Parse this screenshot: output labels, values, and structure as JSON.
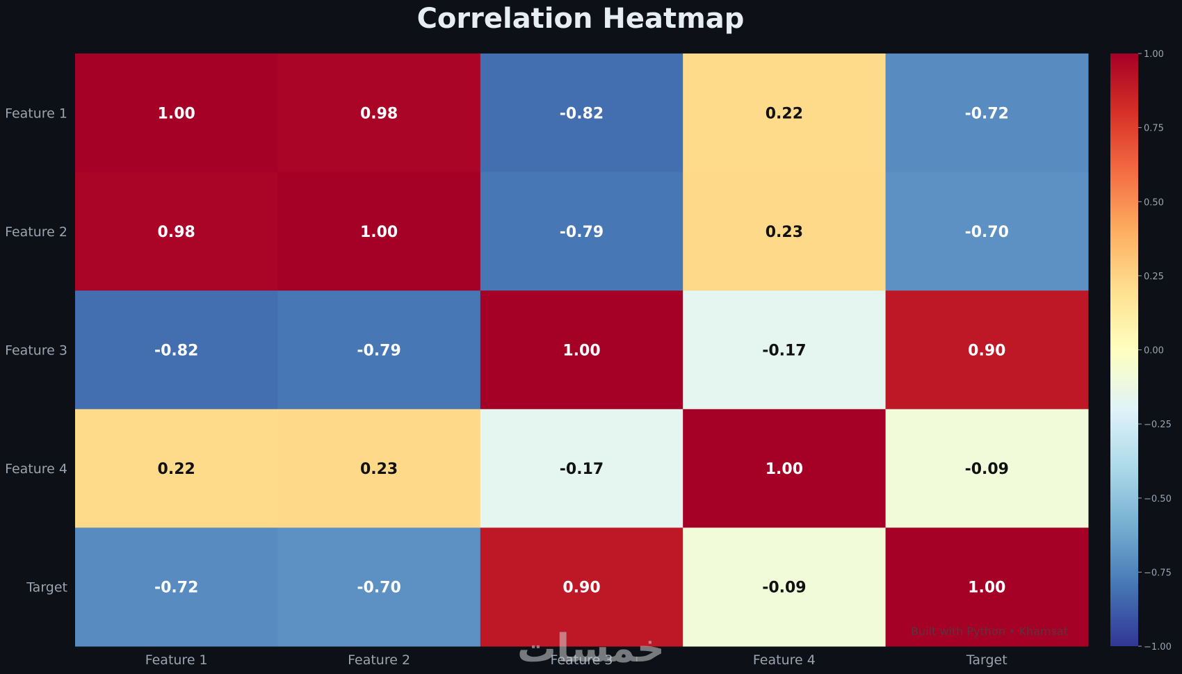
{
  "chart_data": {
    "type": "heatmap",
    "title": "Correlation Heatmap",
    "rows": [
      "Feature 1",
      "Feature 2",
      "Feature 3",
      "Feature 4",
      "Target"
    ],
    "columns": [
      "Feature 1",
      "Feature 2",
      "Feature 3",
      "Feature 4",
      "Target"
    ],
    "values": [
      [
        1.0,
        0.98,
        -0.82,
        0.22,
        -0.72
      ],
      [
        0.98,
        1.0,
        -0.79,
        0.23,
        -0.7
      ],
      [
        -0.82,
        -0.79,
        1.0,
        -0.17,
        0.9
      ],
      [
        0.22,
        0.23,
        -0.17,
        1.0,
        -0.09
      ],
      [
        -0.72,
        -0.7,
        0.9,
        -0.09,
        1.0
      ]
    ],
    "cell_labels": [
      [
        "1.00",
        "0.98",
        "-0.82",
        "0.22",
        "-0.72"
      ],
      [
        "0.98",
        "1.00",
        "-0.79",
        "0.23",
        "-0.70"
      ],
      [
        "-0.82",
        "-0.79",
        "1.00",
        "-0.17",
        "0.90"
      ],
      [
        "0.22",
        "0.23",
        "-0.17",
        "1.00",
        "-0.09"
      ],
      [
        "-0.72",
        "-0.70",
        "0.90",
        "-0.09",
        "1.00"
      ]
    ],
    "colormap": "RdYlBu_r",
    "colorbar": {
      "range": [
        -1.0,
        1.0
      ],
      "ticks": [
        1.0,
        0.75,
        0.5,
        0.25,
        0.0,
        -0.25,
        -0.5,
        -0.75,
        -1.0
      ],
      "tick_labels": [
        "1.00",
        "0.75",
        "0.50",
        "0.25",
        "0.00",
        "−0.25",
        "−0.50",
        "−0.75",
        "−1.00"
      ]
    },
    "grid": false,
    "legend": "colorbar-right"
  },
  "watermark": {
    "credit": "Built with Python • Khamsat",
    "logo_text": "خمسات"
  },
  "colors": {
    "background": "#0d1117",
    "title": "#e6edf3",
    "tick_label": "#9aa4b1",
    "light_text": "#ffffff",
    "dark_text": "#111111",
    "credit_text": "#5a3440"
  }
}
